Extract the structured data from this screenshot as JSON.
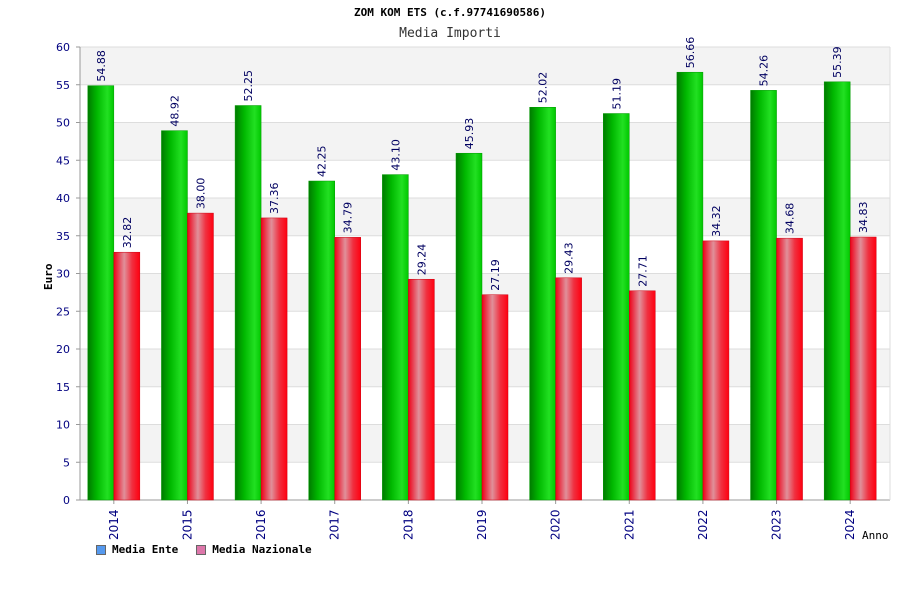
{
  "chart_data": {
    "type": "bar",
    "title": "ZOM KOM ETS (c.f.97741690586)",
    "subtitle": "Media Importi",
    "xlabel": "Anno",
    "ylabel": "Euro",
    "categories": [
      "2014",
      "2015",
      "2016",
      "2017",
      "2018",
      "2019",
      "2020",
      "2021",
      "2022",
      "2023",
      "2024"
    ],
    "ylim": [
      0,
      60
    ],
    "yticks": [
      0,
      5,
      10,
      15,
      20,
      25,
      30,
      35,
      40,
      45,
      50,
      55,
      60
    ],
    "series": [
      {
        "name": "Media Ente",
        "color": "#00cc00",
        "legend_color": "#5599ee",
        "values": [
          54.88,
          48.92,
          52.25,
          42.25,
          43.1,
          45.93,
          52.02,
          51.19,
          56.66,
          54.26,
          55.39
        ],
        "labels": [
          "54.88",
          "48.92",
          "52.25",
          "42.25",
          "43.10",
          "45.93",
          "52.02",
          "51.19",
          "56.66",
          "54.26",
          "55.39"
        ]
      },
      {
        "name": "Media Nazionale",
        "color": "#ee1122",
        "legend_color": "#dd77aa",
        "values": [
          32.82,
          38.0,
          37.36,
          34.79,
          29.24,
          27.19,
          29.43,
          27.71,
          34.32,
          34.68,
          34.83
        ],
        "labels": [
          "32.82",
          "38.00",
          "37.36",
          "34.79",
          "29.24",
          "27.19",
          "29.43",
          "27.71",
          "34.32",
          "34.68",
          "34.83"
        ]
      }
    ],
    "grid": true,
    "legend_position": "bottom-left"
  }
}
